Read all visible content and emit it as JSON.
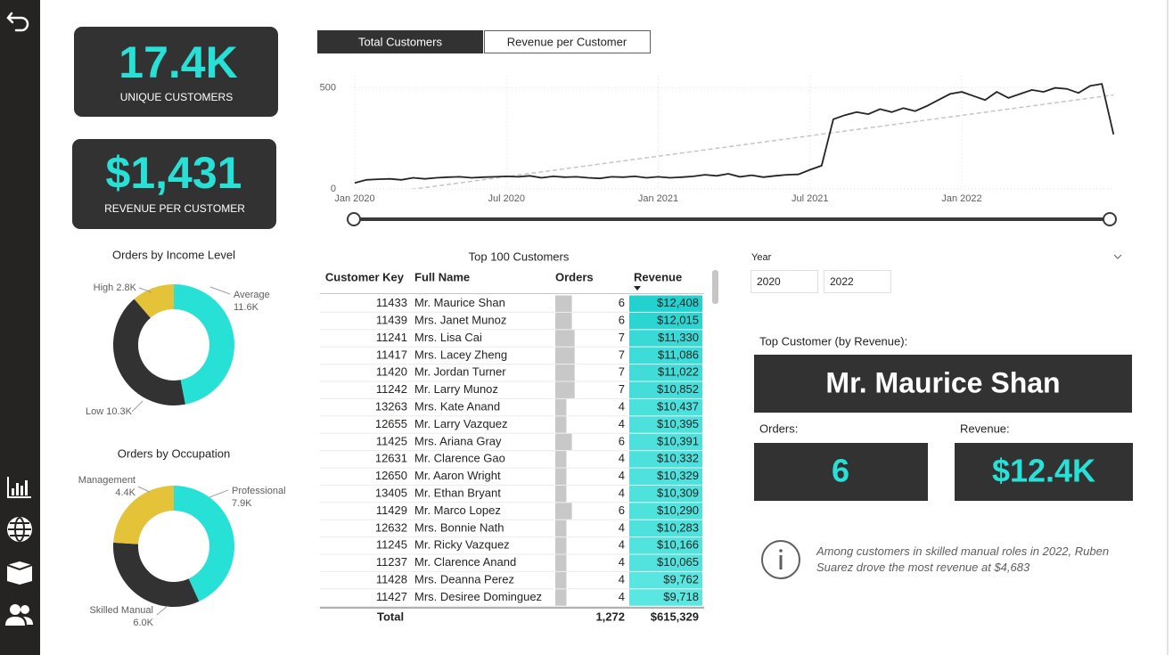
{
  "kpis": [
    {
      "value": "17.4K",
      "label": "UNIQUE CUSTOMERS"
    },
    {
      "value": "$1,431",
      "label": "REVENUE PER CUSTOMER"
    }
  ],
  "tabs": [
    "Total Customers",
    "Revenue per Customer"
  ],
  "line_chart": {
    "type": "line",
    "categories": [
      "Jan 2020",
      null,
      null,
      null,
      null,
      null,
      null,
      null,
      null,
      null,
      null,
      null,
      null,
      "Jul 2020",
      null,
      null,
      null,
      null,
      null,
      null,
      null,
      null,
      null,
      null,
      null,
      null,
      "Jan 2021",
      null,
      null,
      null,
      null,
      null,
      null,
      null,
      null,
      null,
      null,
      null,
      null,
      "Jul 2021",
      null,
      null,
      null,
      null,
      null,
      null,
      null,
      null,
      null,
      null,
      null,
      null,
      "Jan 2022",
      null,
      null,
      null,
      null,
      null,
      null,
      null,
      null,
      null,
      null,
      null,
      null,
      null
    ],
    "values": [
      30,
      45,
      48,
      50,
      45,
      55,
      50,
      55,
      58,
      60,
      55,
      58,
      60,
      62,
      60,
      65,
      55,
      62,
      58,
      60,
      55,
      52,
      60,
      58,
      62,
      55,
      60,
      55,
      58,
      62,
      70,
      65,
      75,
      60,
      68,
      58,
      65,
      70,
      72,
      95,
      115,
      345,
      365,
      380,
      370,
      395,
      380,
      400,
      385,
      410,
      440,
      470,
      480,
      460,
      440,
      480,
      450,
      470,
      490,
      480,
      500,
      495,
      475,
      510,
      520,
      270
    ],
    "trend": [
      -40,
      465
    ],
    "color": "#252423",
    "trend_color": "#c8c6c4",
    "ylim": [
      0,
      560
    ],
    "yticks": [
      0,
      500
    ],
    "grid": true
  },
  "donuts": [
    {
      "type": "pie",
      "title": "Orders by Income Level",
      "categories": [
        "Average",
        "Low",
        "High"
      ],
      "values": [
        11600,
        10300,
        2800
      ],
      "value_labels": [
        "11.6K",
        "10.3K",
        "2.8K"
      ],
      "colors": [
        "#27e0d6",
        "#333233",
        "#e4c338"
      ]
    },
    {
      "type": "pie",
      "title": "Orders by Occupation",
      "categories": [
        "Professional",
        "Skilled Manual",
        "Management"
      ],
      "values": [
        7900,
        6000,
        4400
      ],
      "value_labels": [
        "7.9K",
        "6.0K",
        "4.4K"
      ],
      "colors": [
        "#27e0d6",
        "#333233",
        "#e4c338"
      ]
    }
  ],
  "table": {
    "title": "Top 100 Customers",
    "columns": [
      "Customer Key",
      "Full Name",
      "Orders",
      "Revenue"
    ],
    "rows": [
      {
        "key": 11433,
        "name": "Mr. Maurice Shan",
        "orders": 6,
        "revenue": 12408,
        "revenue_label": "$12,408"
      },
      {
        "key": 11439,
        "name": "Mrs. Janet Munoz",
        "orders": 6,
        "revenue": 12015,
        "revenue_label": "$12,015"
      },
      {
        "key": 11241,
        "name": "Mrs. Lisa Cai",
        "orders": 7,
        "revenue": 11330,
        "revenue_label": "$11,330"
      },
      {
        "key": 11417,
        "name": "Mrs. Lacey Zheng",
        "orders": 7,
        "revenue": 11086,
        "revenue_label": "$11,086"
      },
      {
        "key": 11420,
        "name": "Mr. Jordan Turner",
        "orders": 7,
        "revenue": 11022,
        "revenue_label": "$11,022"
      },
      {
        "key": 11242,
        "name": "Mr. Larry Munoz",
        "orders": 7,
        "revenue": 10852,
        "revenue_label": "$10,852"
      },
      {
        "key": 13263,
        "name": "Mrs. Kate Anand",
        "orders": 4,
        "revenue": 10437,
        "revenue_label": "$10,437"
      },
      {
        "key": 12655,
        "name": "Mr. Larry Vazquez",
        "orders": 4,
        "revenue": 10395,
        "revenue_label": "$10,395"
      },
      {
        "key": 11425,
        "name": "Mrs. Ariana Gray",
        "orders": 6,
        "revenue": 10391,
        "revenue_label": "$10,391"
      },
      {
        "key": 12631,
        "name": "Mr. Clarence Gao",
        "orders": 4,
        "revenue": 10332,
        "revenue_label": "$10,332"
      },
      {
        "key": 12650,
        "name": "Mr. Aaron Wright",
        "orders": 4,
        "revenue": 10329,
        "revenue_label": "$10,329"
      },
      {
        "key": 13405,
        "name": "Mr. Ethan Bryant",
        "orders": 4,
        "revenue": 10309,
        "revenue_label": "$10,309"
      },
      {
        "key": 11429,
        "name": "Mr. Marco Lopez",
        "orders": 6,
        "revenue": 10290,
        "revenue_label": "$10,290"
      },
      {
        "key": 12632,
        "name": "Mrs. Bonnie Nath",
        "orders": 4,
        "revenue": 10283,
        "revenue_label": "$10,283"
      },
      {
        "key": 11245,
        "name": "Mr. Ricky Vazquez",
        "orders": 4,
        "revenue": 10166,
        "revenue_label": "$10,166"
      },
      {
        "key": 11237,
        "name": "Mr. Clarence Anand",
        "orders": 4,
        "revenue": 10065,
        "revenue_label": "$10,065"
      },
      {
        "key": 11428,
        "name": "Mrs. Deanna Perez",
        "orders": 4,
        "revenue": 9762,
        "revenue_label": "$9,762"
      },
      {
        "key": 11427,
        "name": "Mrs. Desiree Dominguez",
        "orders": 4,
        "revenue": 9718,
        "revenue_label": "$9,718"
      }
    ],
    "total": {
      "label": "Total",
      "orders": "1,272",
      "revenue": "$615,329"
    }
  },
  "slicer": {
    "title": "Year",
    "from": "2020",
    "to": "2022"
  },
  "top_customer": {
    "label": "Top Customer (by Revenue):",
    "name": "Mr. Maurice Shan",
    "orders_label": "Orders:",
    "orders": "6",
    "revenue_label": "Revenue:",
    "revenue": "$12.4K"
  },
  "insight": "Among customers in skilled manual roles in 2022, Ruben Suarez drove the most revenue at $4,683"
}
